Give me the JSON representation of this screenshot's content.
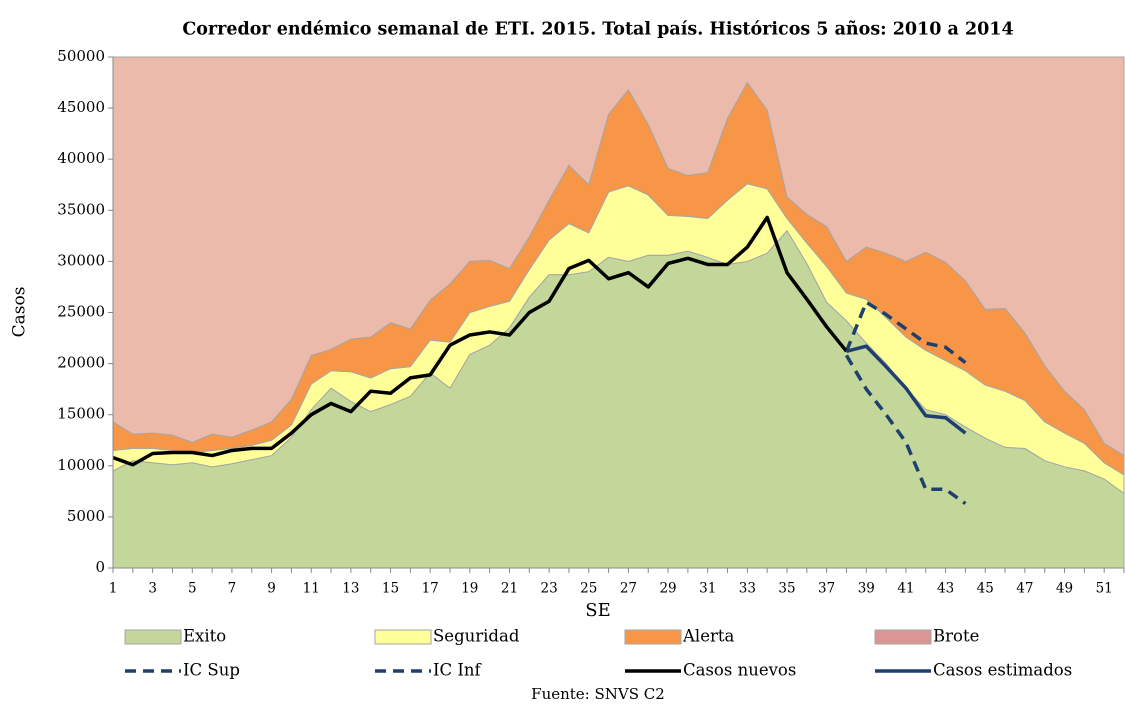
{
  "chart_data": {
    "type": "area",
    "title": "Corredor endémico semanal de ETI. 2015. Total país. Históricos 5 años: 2010 a 2014",
    "x_label": "SE",
    "y_label": "Casos",
    "source": "Fuente: SNVS C2",
    "categories": [
      1,
      null,
      3,
      null,
      5,
      null,
      7,
      null,
      9,
      null,
      11,
      null,
      13,
      null,
      15,
      null,
      17,
      null,
      19,
      null,
      21,
      null,
      23,
      null,
      25,
      null,
      27,
      null,
      29,
      null,
      31,
      null,
      33,
      null,
      35,
      null,
      37,
      null,
      39,
      null,
      41,
      null,
      43,
      null,
      45,
      null,
      47,
      null,
      49,
      null,
      51,
      null
    ],
    "ylim": [
      0,
      50000
    ],
    "yticks": [
      0,
      5000,
      10000,
      15000,
      20000,
      25000,
      30000,
      35000,
      40000,
      45000,
      50000
    ],
    "series": [
      {
        "name": "Exito",
        "kind": "area",
        "color": "#c4d79b",
        "values": [
          9500,
          10500,
          10300,
          10100,
          10300,
          9900,
          10200,
          10600,
          11000,
          12800,
          15500,
          17600,
          16300,
          15300,
          16000,
          16800,
          19100,
          17600,
          20900,
          21800,
          23500,
          26500,
          28700,
          28700,
          29000,
          30400,
          30000,
          30600,
          30600,
          31000,
          30400,
          29700,
          30000,
          30800,
          33000,
          29800,
          26000,
          24200,
          22000,
          20000,
          17600,
          15500,
          15000,
          13800,
          12700,
          11800,
          11700,
          10500,
          9900,
          9500,
          8700,
          7300
        ]
      },
      {
        "name": "Seguridad",
        "kind": "area",
        "color": "#ffff99",
        "values": [
          2000,
          1200,
          1400,
          1400,
          1000,
          1600,
          1500,
          1400,
          1500,
          1200,
          2500,
          1700,
          2900,
          3300,
          3500,
          2900,
          3200,
          4500,
          4100,
          3800,
          2600,
          2700,
          3400,
          5000,
          3800,
          6400,
          7400,
          5900,
          3900,
          3400,
          3800,
          6300,
          7600,
          6300,
          1200,
          2000,
          3500,
          2700,
          4300,
          4500,
          5000,
          5800,
          5300,
          5500,
          5200,
          5500,
          4700,
          3800,
          3300,
          2700,
          1600,
          1800
        ]
      },
      {
        "name": "Alerta",
        "kind": "area",
        "color": "#f79646",
        "values": [
          2800,
          1400,
          1500,
          1500,
          1000,
          1600,
          1100,
          1500,
          1800,
          2500,
          2800,
          2100,
          3200,
          4000,
          4500,
          3700,
          3900,
          5700,
          5000,
          4500,
          3200,
          3200,
          3900,
          5700,
          4700,
          7600,
          9400,
          6900,
          4600,
          4000,
          4500,
          8000,
          9900,
          7700,
          2100,
          2800,
          3900,
          3100,
          5100,
          6300,
          7400,
          9600,
          9600,
          8800,
          7400,
          8100,
          6600,
          5500,
          4100,
          3300,
          1900,
          1900
        ]
      },
      {
        "name": "Brote",
        "kind": "area",
        "color": "#ebbaab",
        "legend_color": "#d99694",
        "values": [
          35700,
          36900,
          36800,
          37000,
          37700,
          36900,
          37200,
          36500,
          35700,
          33500,
          29200,
          28600,
          27600,
          27400,
          26000,
          26600,
          23800,
          22200,
          20000,
          19900,
          20700,
          17600,
          14000,
          10600,
          12500,
          5600,
          3200,
          6600,
          10900,
          11600,
          11300,
          6000,
          2500,
          5200,
          13700,
          15400,
          16600,
          20000,
          18600,
          19200,
          20000,
          19100,
          20100,
          21900,
          24700,
          24600,
          27000,
          30200,
          32700,
          34500,
          37800,
          39000
        ]
      },
      {
        "name": "IC Sup",
        "kind": "line",
        "dashed": true,
        "color": "#1f3f6e",
        "values": [
          null,
          null,
          null,
          null,
          null,
          null,
          null,
          null,
          null,
          null,
          null,
          null,
          null,
          null,
          null,
          null,
          null,
          null,
          null,
          null,
          null,
          null,
          null,
          null,
          null,
          null,
          null,
          null,
          null,
          null,
          null,
          null,
          null,
          null,
          null,
          null,
          null,
          21200,
          26000,
          24800,
          23400,
          22000,
          21600,
          20100,
          null,
          null,
          null,
          null,
          null,
          null,
          null,
          null
        ]
      },
      {
        "name": "IC Inf",
        "kind": "line",
        "dashed": true,
        "color": "#1f3f6e",
        "values": [
          null,
          null,
          null,
          null,
          null,
          null,
          null,
          null,
          null,
          null,
          null,
          null,
          null,
          null,
          null,
          null,
          null,
          null,
          null,
          null,
          null,
          null,
          null,
          null,
          null,
          null,
          null,
          null,
          null,
          null,
          null,
          null,
          null,
          null,
          null,
          null,
          null,
          20800,
          17500,
          15000,
          12300,
          7700,
          7700,
          6300,
          null,
          null,
          null,
          null,
          null,
          null,
          null,
          null
        ]
      },
      {
        "name": "Casos nuevos",
        "kind": "line",
        "color": "#000000",
        "values": [
          10800,
          10100,
          11200,
          11300,
          11300,
          11000,
          11500,
          11700,
          11700,
          13200,
          15000,
          16100,
          15300,
          17300,
          17100,
          18600,
          18900,
          21800,
          22800,
          23100,
          22800,
          25000,
          26100,
          29300,
          30100,
          28300,
          28900,
          27500,
          29800,
          30300,
          29700,
          29700,
          31400,
          34300,
          28900,
          26300,
          23600,
          21200,
          null,
          null,
          null,
          null,
          null,
          null,
          null,
          null,
          null,
          null,
          null,
          null,
          null,
          null
        ]
      },
      {
        "name": "Casos estimados",
        "kind": "line",
        "color": "#1f3f6e",
        "values": [
          null,
          null,
          null,
          null,
          null,
          null,
          null,
          null,
          null,
          null,
          null,
          null,
          null,
          null,
          null,
          null,
          null,
          null,
          null,
          null,
          null,
          null,
          null,
          null,
          null,
          null,
          null,
          null,
          null,
          null,
          null,
          null,
          null,
          null,
          null,
          null,
          null,
          21200,
          21700,
          19700,
          17600,
          14900,
          14700,
          13200,
          null,
          null,
          null,
          null,
          null,
          null,
          null,
          null
        ]
      }
    ]
  }
}
